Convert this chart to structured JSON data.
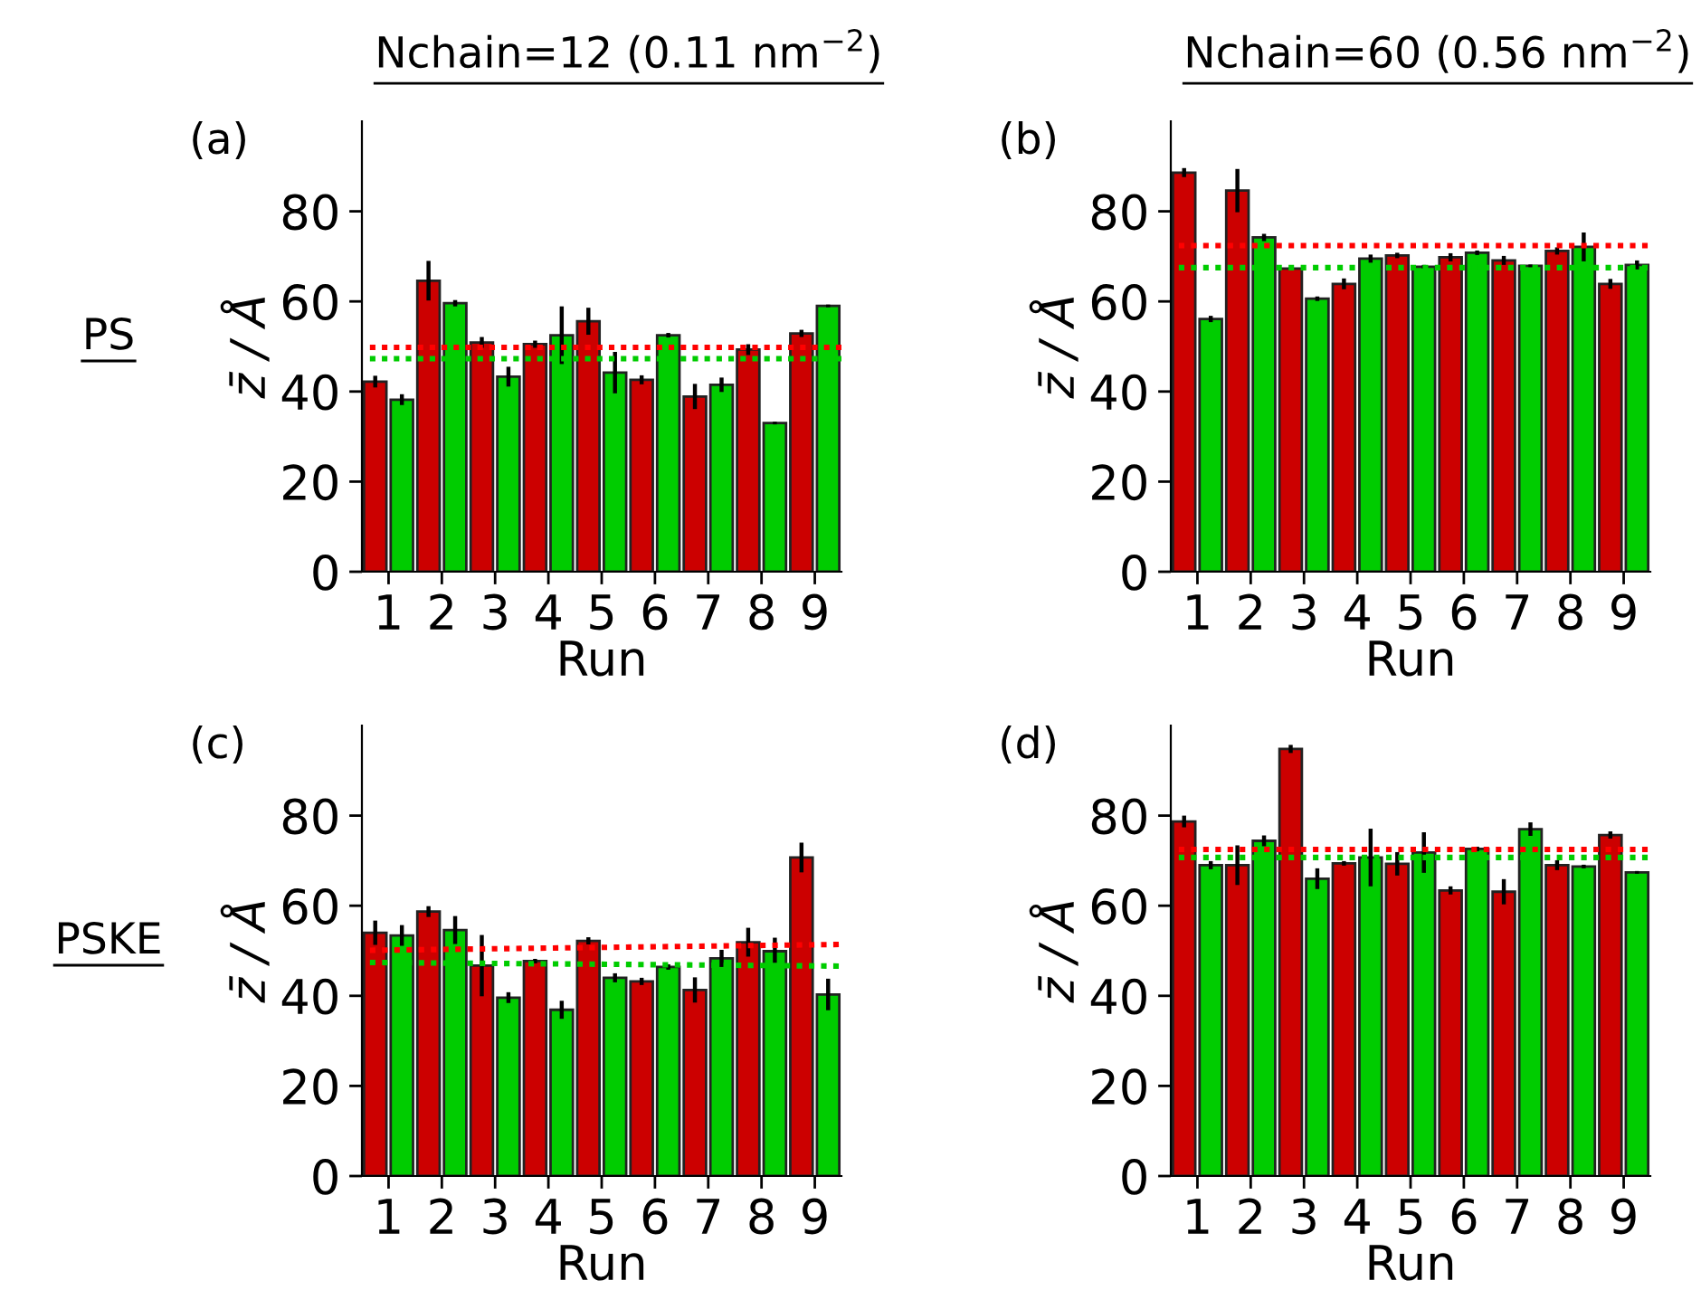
{
  "chart_data": [
    {
      "type": "bar",
      "title": "(a)",
      "xlabel": "Run",
      "ylabel": "z̄ / Å",
      "annotations": [
        "Nchain=12 (0.11 nm$^{−2}$)",
        "PS"
      ],
      "x": [
        1,
        2,
        3,
        4,
        5,
        6,
        7,
        8,
        9
      ],
      "xlim": [
        0.5,
        9.5
      ],
      "xticks": [
        1,
        2,
        3,
        4,
        5,
        6,
        7,
        8,
        9
      ],
      "ylim": [
        0,
        100
      ],
      "yticks": [
        0,
        20,
        40,
        60,
        80
      ],
      "grid": false,
      "legend": false,
      "series": [
        {
          "color": "#cc0000",
          "values": [
            42.2,
            64.6,
            50.9,
            50.5,
            55.6,
            42.6,
            38.9,
            49.3,
            52.9
          ],
          "errors": [
            1.3,
            4.4,
            1.2,
            0.8,
            3.0,
            1.0,
            2.8,
            1.2,
            0.8
          ]
        },
        {
          "color": "#00cc00",
          "values": [
            38.2,
            59.6,
            43.3,
            52.5,
            44.2,
            52.5,
            41.5,
            33.0,
            59.0
          ],
          "errors": [
            1.2,
            0.7,
            2.2,
            6.4,
            4.6,
            0.5,
            1.6,
            0.3,
            0.3
          ]
        },
        {
          "type": "line",
          "color": "#ff0000",
          "line_style": "dotted",
          "x": [
            0.65,
            9.5
          ],
          "values": [
            49.8,
            49.8
          ]
        },
        {
          "type": "line",
          "color": "#00cc00",
          "line_style": "dotted",
          "x": [
            0.65,
            9.5
          ],
          "values": [
            47.3,
            47.3
          ]
        }
      ]
    },
    {
      "type": "bar",
      "title": "(b)",
      "xlabel": "Run",
      "ylabel": "z̄ / Å",
      "annotations": [
        "Nchain=60 (0.56 nm$^{−2}$)"
      ],
      "x": [
        1,
        2,
        3,
        4,
        5,
        6,
        7,
        8,
        9
      ],
      "xlim": [
        0.5,
        9.5
      ],
      "xticks": [
        1,
        2,
        3,
        4,
        5,
        6,
        7,
        8,
        9
      ],
      "ylim": [
        0,
        100
      ],
      "yticks": [
        0,
        20,
        40,
        60,
        80
      ],
      "grid": false,
      "legend": false,
      "series": [
        {
          "color": "#cc0000",
          "values": [
            88.6,
            84.6,
            67.3,
            63.9,
            70.2,
            69.8,
            69.1,
            71.2,
            63.9
          ],
          "errors": [
            1.0,
            4.8,
            0.4,
            1.2,
            0.6,
            0.9,
            1.0,
            0.8,
            1.1
          ]
        },
        {
          "color": "#00cc00",
          "values": [
            56.1,
            74.2,
            60.6,
            69.5,
            67.7,
            70.8,
            67.9,
            72.1,
            68.1
          ],
          "errors": [
            0.7,
            0.8,
            0.5,
            0.9,
            0.4,
            0.5,
            0.3,
            3.2,
            1.0
          ]
        },
        {
          "type": "line",
          "color": "#ff0000",
          "line_style": "dotted",
          "x": [
            0.65,
            9.45
          ],
          "values": [
            72.4,
            72.4
          ]
        },
        {
          "type": "line",
          "color": "#00cc00",
          "line_style": "dotted",
          "x": [
            0.65,
            9.45
          ],
          "values": [
            67.5,
            67.5
          ]
        }
      ]
    },
    {
      "type": "bar",
      "title": "(c)",
      "xlabel": "Run",
      "ylabel": "z̄ / Å",
      "annotations": [
        "PSKE"
      ],
      "x": [
        1,
        2,
        3,
        4,
        5,
        6,
        7,
        8,
        9
      ],
      "xlim": [
        0.5,
        9.5
      ],
      "xticks": [
        1,
        2,
        3,
        4,
        5,
        6,
        7,
        8,
        9
      ],
      "ylim": [
        0,
        100
      ],
      "yticks": [
        0,
        20,
        40,
        60,
        80
      ],
      "grid": false,
      "legend": false,
      "series": [
        {
          "color": "#cc0000",
          "values": [
            54.0,
            58.7,
            46.7,
            47.7,
            52.2,
            43.2,
            41.3,
            51.9,
            70.7
          ],
          "errors": [
            2.7,
            1.2,
            6.8,
            0.5,
            0.8,
            0.8,
            2.8,
            3.2,
            3.3
          ]
        },
        {
          "color": "#00cc00",
          "values": [
            53.4,
            54.6,
            39.6,
            36.9,
            44.0,
            46.4,
            48.3,
            49.9,
            40.3
          ],
          "errors": [
            2.3,
            3.1,
            1.2,
            2.0,
            1.0,
            0.6,
            1.9,
            3.0,
            3.5
          ]
        },
        {
          "type": "line",
          "color": "#ff0000",
          "line_style": "dotted",
          "x": [
            0.65,
            9.45
          ],
          "values": [
            50.1,
            51.4
          ]
        },
        {
          "type": "line",
          "color": "#00cc00",
          "line_style": "dotted",
          "x": [
            0.65,
            9.45
          ],
          "values": [
            47.4,
            46.6
          ]
        }
      ]
    },
    {
      "type": "bar",
      "title": "(d)",
      "xlabel": "Run",
      "ylabel": "z̄ / Å",
      "x": [
        1,
        2,
        3,
        4,
        5,
        6,
        7,
        8,
        9
      ],
      "xlim": [
        0.5,
        9.5
      ],
      "xticks": [
        1,
        2,
        3,
        4,
        5,
        6,
        7,
        8,
        9
      ],
      "ylim": [
        0,
        100
      ],
      "yticks": [
        0,
        20,
        40,
        60,
        80
      ],
      "grid": false,
      "legend": false,
      "series": [
        {
          "color": "#cc0000",
          "values": [
            78.7,
            69.0,
            94.8,
            69.4,
            69.3,
            63.4,
            63.1,
            69.0,
            75.7
          ],
          "errors": [
            1.3,
            4.4,
            0.9,
            0.5,
            2.6,
            0.9,
            2.8,
            1.1,
            0.8
          ]
        },
        {
          "color": "#00cc00",
          "values": [
            69.0,
            74.4,
            66.0,
            70.7,
            71.8,
            72.6,
            77.0,
            68.7,
            67.4
          ],
          "errors": [
            0.9,
            1.2,
            2.3,
            6.4,
            4.5,
            0.5,
            1.5,
            0.4,
            0.3
          ]
        },
        {
          "type": "line",
          "color": "#ff0000",
          "line_style": "dotted",
          "x": [
            0.65,
            9.45
          ],
          "values": [
            72.5,
            72.5
          ]
        },
        {
          "type": "line",
          "color": "#00cc00",
          "line_style": "dotted",
          "x": [
            0.65,
            9.45
          ],
          "values": [
            70.7,
            70.7
          ]
        }
      ]
    }
  ]
}
